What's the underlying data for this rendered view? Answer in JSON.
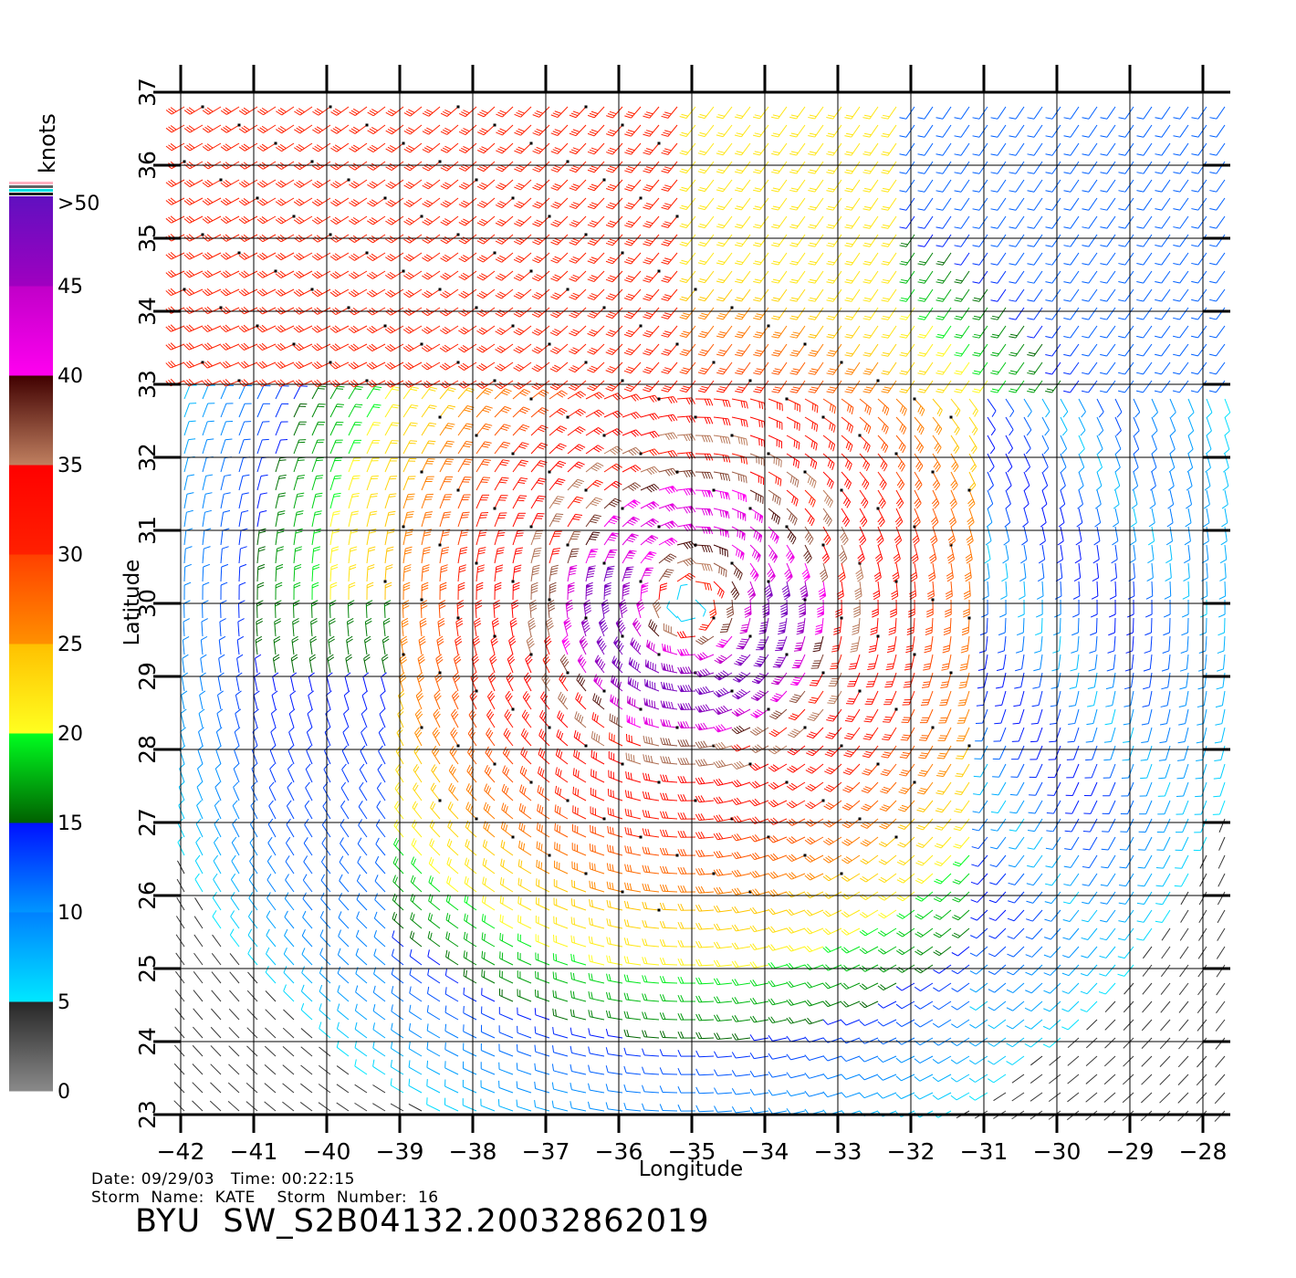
{
  "colorbar": {
    "unit": "knots",
    "labels": [
      "0",
      "5",
      "10",
      "15",
      "20",
      "25",
      "30",
      "35",
      "40",
      "45",
      ">50"
    ],
    "stops": [
      {
        "from": 0,
        "to": 5,
        "c1": "#8a8a8a",
        "c2": "#262626"
      },
      {
        "from": 5,
        "to": 10,
        "c1": "#00e8ff",
        "c2": "#0080ff"
      },
      {
        "from": 10,
        "to": 15,
        "c1": "#0096ff",
        "c2": "#0010ff"
      },
      {
        "from": 15,
        "to": 20,
        "c1": "#006000",
        "c2": "#00ff20"
      },
      {
        "from": 20,
        "to": 25,
        "c1": "#ffff20",
        "c2": "#ffc000"
      },
      {
        "from": 25,
        "to": 30,
        "c1": "#ff9000",
        "c2": "#ff4000"
      },
      {
        "from": 30,
        "to": 35,
        "c1": "#ff2000",
        "c2": "#ff0000"
      },
      {
        "from": 35,
        "to": 40,
        "c1": "#c08060",
        "c2": "#400000"
      },
      {
        "from": 40,
        "to": 45,
        "c1": "#ff00f0",
        "c2": "#c000c8"
      },
      {
        "from": 45,
        "to": 50,
        "c1": "#a000c0",
        "c2": "#6010c0"
      }
    ]
  },
  "axes": {
    "xlabel": "Longitude",
    "ylabel": "Latitude",
    "lon_ticks": [
      "−42",
      "−41",
      "−40",
      "−39",
      "−38",
      "−37",
      "−36",
      "−35",
      "−34",
      "−33",
      "−32",
      "−31",
      "−30",
      "−29",
      "−28"
    ],
    "lat_ticks": [
      "23",
      "24",
      "25",
      "26",
      "27",
      "28",
      "29",
      "30",
      "31",
      "32",
      "33",
      "34",
      "35",
      "36",
      "37"
    ],
    "lon_range": [
      -42,
      -28
    ],
    "lat_range": [
      23,
      37
    ],
    "grid": true
  },
  "storm_center": {
    "lon": -35,
    "lat": 30
  },
  "footer": {
    "date_line": "Date: 09/29/03   Time: 00:22:15",
    "storm_line": "Storm  Name:  KATE    Storm  Number:  16",
    "file_line": "BYU  SW_S2B04132.20032862019"
  }
}
